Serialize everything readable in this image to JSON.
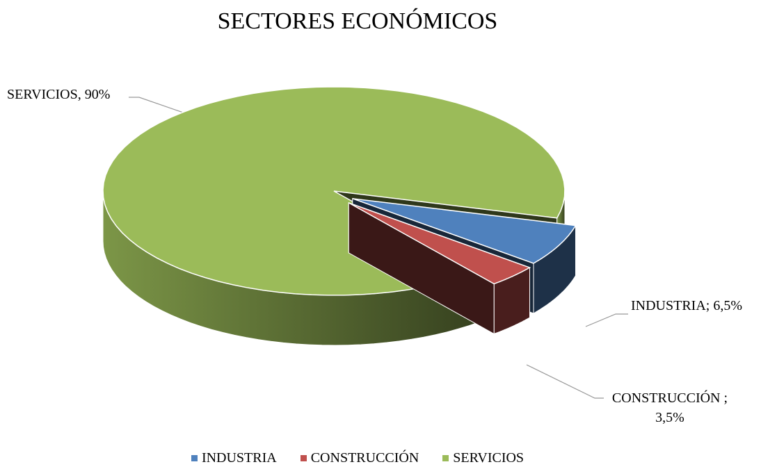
{
  "chart_data": {
    "type": "pie",
    "title": "SECTORES ECONÓMICOS",
    "categories": [
      "INDUSTRIA",
      "CONSTRUCCIÓN",
      "SERVICIOS"
    ],
    "values": [
      6.5,
      3.5,
      90
    ],
    "value_labels": [
      "INDUSTRIA; 6,5%",
      "CONSTRUCCIÓN ; 3,5%",
      "SERVICIOS, 90%"
    ],
    "colors": [
      "#4f81bd",
      "#c0504d",
      "#9bbb59"
    ],
    "legend": "bottom"
  }
}
